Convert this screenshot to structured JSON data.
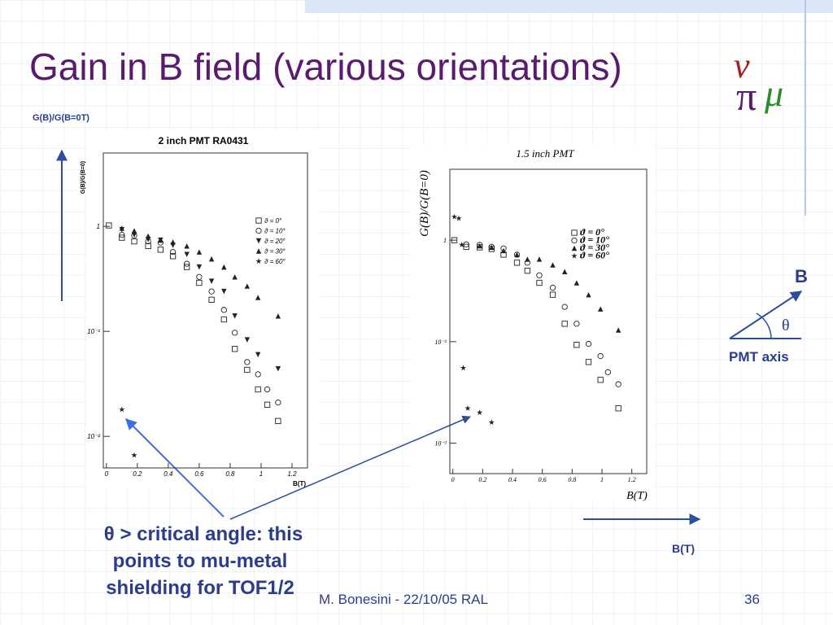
{
  "slide": {
    "title": "Gain in B field (various orientations)",
    "y_note": "G(B)/G(B=0T)",
    "b_label": "B",
    "theta": "θ",
    "pmt_axis": "PMT axis",
    "caption": [
      "θ > critical angle: this",
      "points to mu-metal",
      "shielding for TOF1/2"
    ],
    "x_note": "B(T)",
    "footer": "M. Bonesini - 22/10/05 RAL",
    "page": "36",
    "logo": [
      "ν",
      "π",
      "μ"
    ]
  },
  "chart_data": [
    {
      "type": "scatter",
      "title": "2 inch PMT RA0431",
      "x_label": "B(T)",
      "y_label": "G(B)/G(B=0)",
      "xlim": [
        -0.02,
        1.3
      ],
      "xticks": [
        0,
        0.2,
        0.4,
        0.6,
        0.8,
        1,
        1.2
      ],
      "ylim": [
        0.005,
        5
      ],
      "log_y": true,
      "yticks": [
        1,
        {
          "value": 0.1,
          "label": "10⁻¹"
        },
        {
          "value": 0.01,
          "label": "10⁻²"
        }
      ],
      "series": [
        {
          "name": "ϑ = 0°",
          "marker": "square",
          "color": "#222",
          "x": [
            0.016,
            0.1,
            0.18,
            0.27,
            0.35,
            0.43,
            0.52,
            0.6,
            0.68,
            0.76,
            0.83,
            0.91,
            0.98,
            1.04,
            1.11
          ],
          "values": [
            1.02,
            0.78,
            0.72,
            0.65,
            0.6,
            0.52,
            0.41,
            0.29,
            0.2,
            0.13,
            0.068,
            0.043,
            0.028,
            0.02,
            0.014
          ]
        },
        {
          "name": "ϑ = 10°",
          "marker": "circle",
          "color": "#222",
          "x": [
            0.1,
            0.18,
            0.27,
            0.35,
            0.43,
            0.52,
            0.6,
            0.68,
            0.76,
            0.83,
            0.91,
            0.98,
            1.04,
            1.11
          ],
          "values": [
            0.83,
            0.82,
            0.72,
            0.7,
            0.57,
            0.44,
            0.33,
            0.24,
            0.16,
            0.097,
            0.051,
            0.039,
            0.028,
            0.021
          ]
        },
        {
          "name": "ϑ = 20°",
          "marker": "triangle-down",
          "color": "#222",
          "x": [
            0.1,
            0.18,
            0.27,
            0.35,
            0.43,
            0.52,
            0.6,
            0.68,
            0.76,
            0.83,
            0.91,
            0.98,
            1.11
          ],
          "values": [
            0.93,
            0.83,
            0.75,
            0.74,
            0.66,
            0.54,
            0.41,
            0.3,
            0.24,
            0.14,
            0.083,
            0.06,
            0.044
          ]
        },
        {
          "name": "ϑ = 30°",
          "marker": "triangle",
          "color": "#222",
          "x": [
            0.1,
            0.18,
            0.27,
            0.35,
            0.43,
            0.52,
            0.6,
            0.68,
            0.76,
            0.83,
            0.91,
            0.98,
            1.11
          ],
          "values": [
            0.96,
            0.91,
            0.81,
            0.74,
            0.71,
            0.65,
            0.57,
            0.49,
            0.41,
            0.33,
            0.27,
            0.21,
            0.14
          ]
        },
        {
          "name": "ϑ = 60°",
          "marker": "star",
          "color": "#222",
          "x": [
            0.1,
            0.18
          ],
          "values": [
            0.018,
            0.0066
          ]
        }
      ]
    },
    {
      "type": "scatter",
      "title": "1.5 inch PMT",
      "x_label": "B(T)",
      "y_label": "G(B)/G(B=0)",
      "xlim": [
        -0.02,
        1.3
      ],
      "xticks": [
        0,
        0.2,
        0.4,
        0.6,
        0.8,
        1,
        1.2
      ],
      "ylim": [
        0.005,
        5
      ],
      "log_y": true,
      "yticks": [
        1,
        {
          "value": 0.1,
          "label": "10⁻¹"
        },
        {
          "value": 0.01,
          "label": "10⁻²"
        }
      ],
      "series": [
        {
          "name": "ϑ = 0°",
          "marker": "square",
          "color": "#222",
          "x": [
            0.01,
            0.09,
            0.18,
            0.26,
            0.34,
            0.43,
            0.5,
            0.58,
            0.67,
            0.75,
            0.83,
            0.91,
            0.99,
            1.11
          ],
          "values": [
            1.0,
            0.86,
            0.85,
            0.82,
            0.72,
            0.6,
            0.5,
            0.38,
            0.29,
            0.15,
            0.093,
            0.063,
            0.042,
            0.022
          ]
        },
        {
          "name": "ϑ = 10°",
          "marker": "circle",
          "color": "#222",
          "x": [
            0.09,
            0.18,
            0.26,
            0.34,
            0.43,
            0.5,
            0.58,
            0.67,
            0.75,
            0.83,
            0.91,
            0.99,
            1.04,
            1.11
          ],
          "values": [
            0.91,
            0.9,
            0.86,
            0.83,
            0.72,
            0.6,
            0.45,
            0.34,
            0.22,
            0.15,
            0.095,
            0.072,
            0.05,
            0.038
          ]
        },
        {
          "name": "ϑ = 30°",
          "marker": "triangle",
          "color": "#222",
          "x": [
            0.18,
            0.26,
            0.34,
            0.43,
            0.5,
            0.58,
            0.67,
            0.75,
            0.83,
            0.91,
            0.99,
            1.11
          ],
          "values": [
            0.88,
            0.85,
            0.79,
            0.72,
            0.65,
            0.65,
            0.57,
            0.49,
            0.38,
            0.29,
            0.21,
            0.13
          ]
        },
        {
          "name": "ϑ = 60°",
          "marker": "star",
          "color": "#222",
          "x": [
            0.01,
            0.04,
            0.06,
            0.07,
            0.1,
            0.18,
            0.26
          ],
          "values": [
            1.7,
            1.64,
            0.9,
            0.055,
            0.022,
            0.02,
            0.016
          ]
        }
      ]
    }
  ]
}
